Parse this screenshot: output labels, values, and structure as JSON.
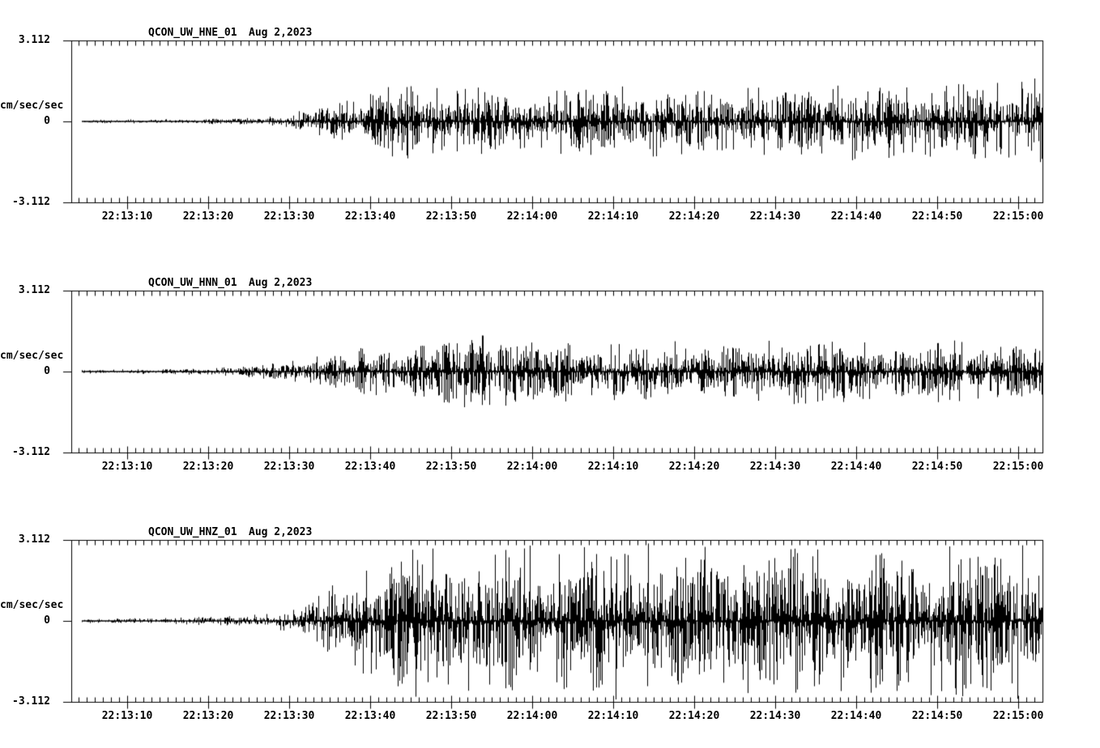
{
  "window": {
    "background_color": "#ffffff",
    "trace_color": "#000000"
  },
  "time_axis": {
    "labels": [
      "22:13:10",
      "22:13:20",
      "22:13:30",
      "22:13:40",
      "22:13:50",
      "22:14:00",
      "22:14:10",
      "22:14:20",
      "22:14:30",
      "22:14:40",
      "22:14:50",
      "22:15:00"
    ],
    "minor_tick_interval_seconds": 1,
    "major_tick_interval_seconds": 10
  },
  "panels": [
    {
      "station": "QCON_UW_HNE_01",
      "date": "Aug 2,2023",
      "y_axis": {
        "max": "3.112",
        "units": "cm/sec/sec",
        "zero": "0",
        "min": "-3.112"
      }
    },
    {
      "station": "QCON_UW_HNN_01",
      "date": "Aug 2,2023",
      "y_axis": {
        "max": "3.112",
        "units": "cm/sec/sec",
        "zero": "0",
        "min": "-3.112"
      }
    },
    {
      "station": "QCON_UW_HNZ_01",
      "date": "Aug 2,2023",
      "y_axis": {
        "max": "3.112",
        "units": "cm/sec/sec",
        "zero": "0",
        "min": "-3.112"
      }
    }
  ],
  "chart_data": [
    {
      "type": "line",
      "subtype": "seismogram",
      "title": "QCON_UW_HNE_01",
      "date_label": "Aug 2,2023",
      "ylabel": "cm/sec/sec",
      "ylim": [
        -3.112,
        3.112
      ],
      "y_tick_labels": [
        "3.112",
        "0",
        "-3.112"
      ],
      "x_tick_labels": [
        "22:13:10",
        "22:13:20",
        "22:13:30",
        "22:13:40",
        "22:13:50",
        "22:14:00",
        "22:14:10",
        "22:14:20",
        "22:14:30",
        "22:14:40",
        "22:14:50",
        "22:15:00"
      ],
      "x_start_time": "22:13:03",
      "x_end_time": "22:15:03",
      "grid": false,
      "legend": false,
      "trace_color": "#000000",
      "noise_onset_time": "22:13:30",
      "envelope_peak_cm_per_s2": [
        [
          6.4,
          0.07
        ],
        [
          14,
          0.08
        ],
        [
          20,
          0.1
        ],
        [
          25,
          0.14
        ],
        [
          29,
          0.22
        ],
        [
          32,
          0.45
        ],
        [
          35,
          0.6
        ],
        [
          38,
          0.85
        ],
        [
          41,
          1.2
        ],
        [
          45,
          1.55
        ],
        [
          49,
          1.15
        ],
        [
          53,
          1.35
        ],
        [
          57,
          1.0
        ],
        [
          61,
          1.25
        ],
        [
          66,
          1.2
        ],
        [
          71,
          1.3
        ],
        [
          76,
          1.4
        ],
        [
          81,
          1.2
        ],
        [
          86,
          1.25
        ],
        [
          91,
          1.35
        ],
        [
          96,
          1.25
        ],
        [
          101,
          1.5
        ],
        [
          106,
          1.3
        ],
        [
          111,
          1.4
        ],
        [
          116,
          1.45
        ],
        [
          123,
          1.6
        ]
      ]
    },
    {
      "type": "line",
      "subtype": "seismogram",
      "title": "QCON_UW_HNN_01",
      "date_label": "Aug 2,2023",
      "ylabel": "cm/sec/sec",
      "ylim": [
        -3.112,
        3.112
      ],
      "y_tick_labels": [
        "3.112",
        "0",
        "-3.112"
      ],
      "x_tick_labels": [
        "22:13:10",
        "22:13:20",
        "22:13:30",
        "22:13:40",
        "22:13:50",
        "22:14:00",
        "22:14:10",
        "22:14:20",
        "22:14:30",
        "22:14:40",
        "22:14:50",
        "22:15:00"
      ],
      "x_start_time": "22:13:03",
      "x_end_time": "22:15:03",
      "grid": false,
      "legend": false,
      "trace_color": "#000000",
      "noise_onset_time": "22:13:30",
      "envelope_peak_cm_per_s2": [
        [
          6.4,
          0.08
        ],
        [
          14,
          0.1
        ],
        [
          19,
          0.12
        ],
        [
          24,
          0.2
        ],
        [
          28,
          0.3
        ],
        [
          32,
          0.5
        ],
        [
          36,
          0.7
        ],
        [
          40,
          0.95
        ],
        [
          45,
          1.15
        ],
        [
          50,
          1.3
        ],
        [
          55,
          1.4
        ],
        [
          60,
          1.15
        ],
        [
          64,
          1.1
        ],
        [
          70,
          1.05
        ],
        [
          76,
          1.15
        ],
        [
          82,
          1.0
        ],
        [
          88,
          1.1
        ],
        [
          94,
          1.25
        ],
        [
          100,
          1.1
        ],
        [
          106,
          1.05
        ],
        [
          112,
          1.15
        ],
        [
          118,
          1.0
        ],
        [
          123,
          1.05
        ]
      ]
    },
    {
      "type": "line",
      "subtype": "seismogram",
      "title": "QCON_UW_HNZ_01",
      "date_label": "Aug 2,2023",
      "ylabel": "cm/sec/sec",
      "ylim": [
        -3.112,
        3.112
      ],
      "y_tick_labels": [
        "3.112",
        "0",
        "-3.112"
      ],
      "x_tick_labels": [
        "22:13:10",
        "22:13:20",
        "22:13:30",
        "22:13:40",
        "22:13:50",
        "22:14:00",
        "22:14:10",
        "22:14:20",
        "22:14:30",
        "22:14:40",
        "22:14:50",
        "22:15:00"
      ],
      "x_start_time": "22:13:03",
      "x_end_time": "22:15:03",
      "grid": false,
      "legend": false,
      "trace_color": "#000000",
      "noise_onset_time": "22:13:32",
      "envelope_peak_cm_per_s2": [
        [
          6.4,
          0.08
        ],
        [
          15,
          0.12
        ],
        [
          22,
          0.18
        ],
        [
          27,
          0.25
        ],
        [
          31,
          0.45
        ],
        [
          34,
          1.0
        ],
        [
          37,
          1.8
        ],
        [
          40,
          2.3
        ],
        [
          44,
          2.9
        ],
        [
          50,
          2.75
        ],
        [
          56,
          2.9
        ],
        [
          63,
          2.8
        ],
        [
          70,
          2.95
        ],
        [
          78,
          2.75
        ],
        [
          85,
          2.85
        ],
        [
          93,
          2.9
        ],
        [
          100,
          2.7
        ],
        [
          107,
          2.85
        ],
        [
          114,
          2.9
        ],
        [
          123,
          2.85
        ]
      ]
    }
  ]
}
